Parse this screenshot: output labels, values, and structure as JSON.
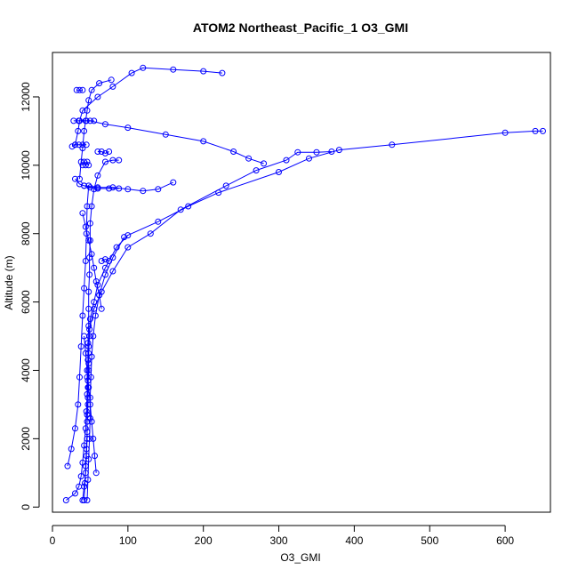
{
  "chart_data": {
    "type": "line",
    "title": "ATOM2 Northeast_Pacific_1 O3_GMI",
    "xlabel": "O3_GMI",
    "ylabel": "Altitude (m)",
    "xlim": [
      0,
      660
    ],
    "ylim": [
      -150,
      13300
    ],
    "xticks": [
      0,
      100,
      200,
      300,
      400,
      500,
      600
    ],
    "yticks": [
      0,
      2000,
      4000,
      6000,
      8000,
      10000,
      12000
    ],
    "grid": false,
    "legend": "none",
    "color": "#0000ff",
    "marker": "open-circle",
    "series": [
      {
        "points": [
          [
            18,
            200
          ],
          [
            30,
            400
          ],
          [
            35,
            600
          ],
          [
            38,
            900
          ],
          [
            40,
            1300
          ],
          [
            42,
            1800
          ],
          [
            44,
            2300
          ],
          [
            45,
            2800
          ],
          [
            46,
            3300
          ],
          [
            46,
            3800
          ],
          [
            47,
            4300
          ],
          [
            47,
            4800
          ],
          [
            48,
            5300
          ],
          [
            48,
            5800
          ],
          [
            48,
            6300
          ],
          [
            49,
            6800
          ],
          [
            49,
            7300
          ],
          [
            50,
            7800
          ],
          [
            50,
            8300
          ],
          [
            52,
            8800
          ],
          [
            55,
            9300
          ],
          [
            60,
            9700
          ],
          [
            70,
            10100
          ],
          [
            80,
            10150
          ],
          [
            88,
            10150
          ]
        ]
      },
      {
        "points": [
          [
            40,
            200
          ],
          [
            42,
            600
          ],
          [
            44,
            1000
          ],
          [
            45,
            1500
          ],
          [
            46,
            2000
          ],
          [
            46,
            2500
          ],
          [
            47,
            3000
          ],
          [
            47,
            3500
          ],
          [
            48,
            4000
          ],
          [
            48,
            4500
          ],
          [
            49,
            5000
          ],
          [
            50,
            5500
          ],
          [
            55,
            6000
          ],
          [
            60,
            6500
          ],
          [
            70,
            7000
          ],
          [
            85,
            7600
          ],
          [
            100,
            7950
          ],
          [
            140,
            8350
          ],
          [
            180,
            8800
          ],
          [
            220,
            9200
          ],
          [
            300,
            9800
          ],
          [
            340,
            10200
          ],
          [
            380,
            10450
          ],
          [
            450,
            10600
          ],
          [
            600,
            10950
          ],
          [
            640,
            11000
          ],
          [
            650,
            11000
          ]
        ]
      },
      {
        "points": [
          [
            42,
            200
          ],
          [
            43,
            700
          ],
          [
            44,
            1200
          ],
          [
            45,
            1700
          ],
          [
            46,
            2200
          ],
          [
            46,
            2700
          ],
          [
            47,
            3200
          ],
          [
            47,
            3700
          ],
          [
            48,
            4200
          ],
          [
            48,
            4700
          ],
          [
            49,
            5200
          ],
          [
            55,
            5800
          ],
          [
            65,
            6300
          ],
          [
            80,
            6900
          ],
          [
            100,
            7600
          ],
          [
            130,
            8000
          ],
          [
            170,
            8700
          ],
          [
            230,
            9400
          ],
          [
            270,
            9850
          ],
          [
            310,
            10150
          ],
          [
            325,
            10380
          ],
          [
            350,
            10380
          ],
          [
            370,
            10400
          ]
        ]
      },
      {
        "points": [
          [
            36,
            9600
          ],
          [
            38,
            10100
          ],
          [
            40,
            10500
          ],
          [
            42,
            11000
          ],
          [
            44,
            11300
          ],
          [
            46,
            11600
          ],
          [
            48,
            11900
          ],
          [
            52,
            12200
          ],
          [
            62,
            12400
          ],
          [
            78,
            12500
          ]
        ]
      },
      {
        "points": [
          [
            30,
            10600
          ],
          [
            34,
            11000
          ],
          [
            36,
            11300
          ],
          [
            40,
            11600
          ],
          [
            60,
            12000
          ],
          [
            80,
            12300
          ],
          [
            105,
            12700
          ],
          [
            120,
            12850
          ],
          [
            160,
            12800
          ],
          [
            200,
            12750
          ],
          [
            225,
            12700
          ]
        ]
      },
      {
        "points": [
          [
            35,
            11300
          ],
          [
            50,
            11300
          ],
          [
            70,
            11200
          ],
          [
            100,
            11100
          ],
          [
            150,
            10900
          ],
          [
            200,
            10700
          ],
          [
            240,
            10400
          ],
          [
            260,
            10200
          ],
          [
            280,
            10050
          ]
        ]
      },
      {
        "points": [
          [
            42,
            9400
          ],
          [
            60,
            9350
          ],
          [
            80,
            9350
          ],
          [
            100,
            9300
          ],
          [
            120,
            9250
          ],
          [
            140,
            9300
          ],
          [
            160,
            9500
          ]
        ]
      },
      {
        "points": [
          [
            26,
            10550
          ],
          [
            30,
            10600
          ],
          [
            35,
            10600
          ],
          [
            40,
            10600
          ],
          [
            45,
            10600
          ]
        ]
      },
      {
        "points": [
          [
            28,
            11300
          ],
          [
            35,
            11300
          ],
          [
            45,
            11300
          ],
          [
            55,
            11300
          ]
        ]
      },
      {
        "points": [
          [
            30,
            9600
          ],
          [
            36,
            9450
          ],
          [
            42,
            9400
          ],
          [
            50,
            9350
          ],
          [
            60,
            9320
          ],
          [
            75,
            9320
          ],
          [
            88,
            9320
          ]
        ]
      },
      {
        "points": [
          [
            20,
            1200
          ],
          [
            25,
            1700
          ],
          [
            30,
            2300
          ],
          [
            34,
            3000
          ],
          [
            36,
            3800
          ],
          [
            38,
            4700
          ],
          [
            40,
            5600
          ],
          [
            42,
            6400
          ],
          [
            44,
            7200
          ],
          [
            45,
            8000
          ],
          [
            46,
            8800
          ],
          [
            48,
            9400
          ]
        ]
      },
      {
        "points": [
          [
            46,
            200
          ],
          [
            47,
            800
          ],
          [
            48,
            1400
          ],
          [
            49,
            2000
          ],
          [
            50,
            2600
          ],
          [
            50,
            3200
          ],
          [
            51,
            3800
          ],
          [
            52,
            4400
          ],
          [
            54,
            5000
          ],
          [
            57,
            5600
          ],
          [
            62,
            6200
          ],
          [
            70,
            6800
          ],
          [
            80,
            7300
          ],
          [
            95,
            7900
          ]
        ]
      },
      {
        "points": [
          [
            40,
            8600
          ],
          [
            44,
            8200
          ],
          [
            48,
            7800
          ],
          [
            52,
            7400
          ],
          [
            55,
            7000
          ],
          [
            58,
            6600
          ],
          [
            62,
            6200
          ],
          [
            65,
            5800
          ]
        ]
      },
      {
        "points": [
          [
            32,
            12200
          ],
          [
            36,
            12200
          ],
          [
            40,
            12200
          ]
        ]
      },
      {
        "points": [
          [
            40,
            10000
          ],
          [
            42,
            10100
          ],
          [
            44,
            10000
          ],
          [
            46,
            10100
          ],
          [
            48,
            10000
          ]
        ]
      },
      {
        "points": [
          [
            60,
            10400
          ],
          [
            65,
            10400
          ],
          [
            70,
            10350
          ],
          [
            75,
            10400
          ]
        ]
      },
      {
        "points": [
          [
            65,
            7200
          ],
          [
            70,
            7250
          ],
          [
            75,
            7200
          ]
        ]
      },
      {
        "points": [
          [
            42,
            5000
          ],
          [
            44,
            4500
          ],
          [
            46,
            4000
          ],
          [
            48,
            3500
          ],
          [
            50,
            3000
          ],
          [
            52,
            2500
          ],
          [
            54,
            2000
          ],
          [
            56,
            1500
          ],
          [
            58,
            1000
          ]
        ]
      }
    ]
  }
}
